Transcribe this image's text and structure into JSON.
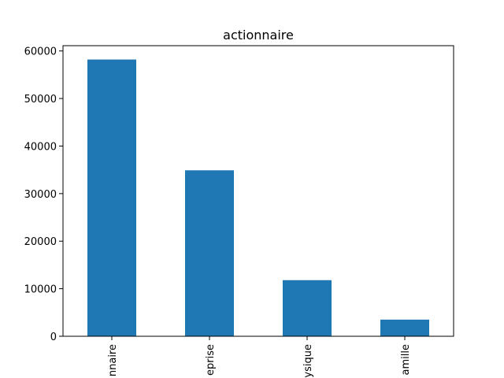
{
  "chart_data": {
    "type": "bar",
    "title": "actionnaire",
    "categories": [
      "nnaire",
      "eprise",
      "ysique",
      "amille"
    ],
    "values": [
      58200,
      34900,
      11800,
      3500
    ],
    "xlabel": "",
    "ylabel": "",
    "ylim": [
      0,
      61110
    ],
    "yticks": [
      0,
      10000,
      20000,
      30000,
      40000,
      50000,
      60000
    ],
    "ytick_labels": [
      "0",
      "10000",
      "20000",
      "30000",
      "40000",
      "50000",
      "60000"
    ],
    "bar_color": "#1f77b4",
    "grid": false,
    "legend": "none"
  }
}
